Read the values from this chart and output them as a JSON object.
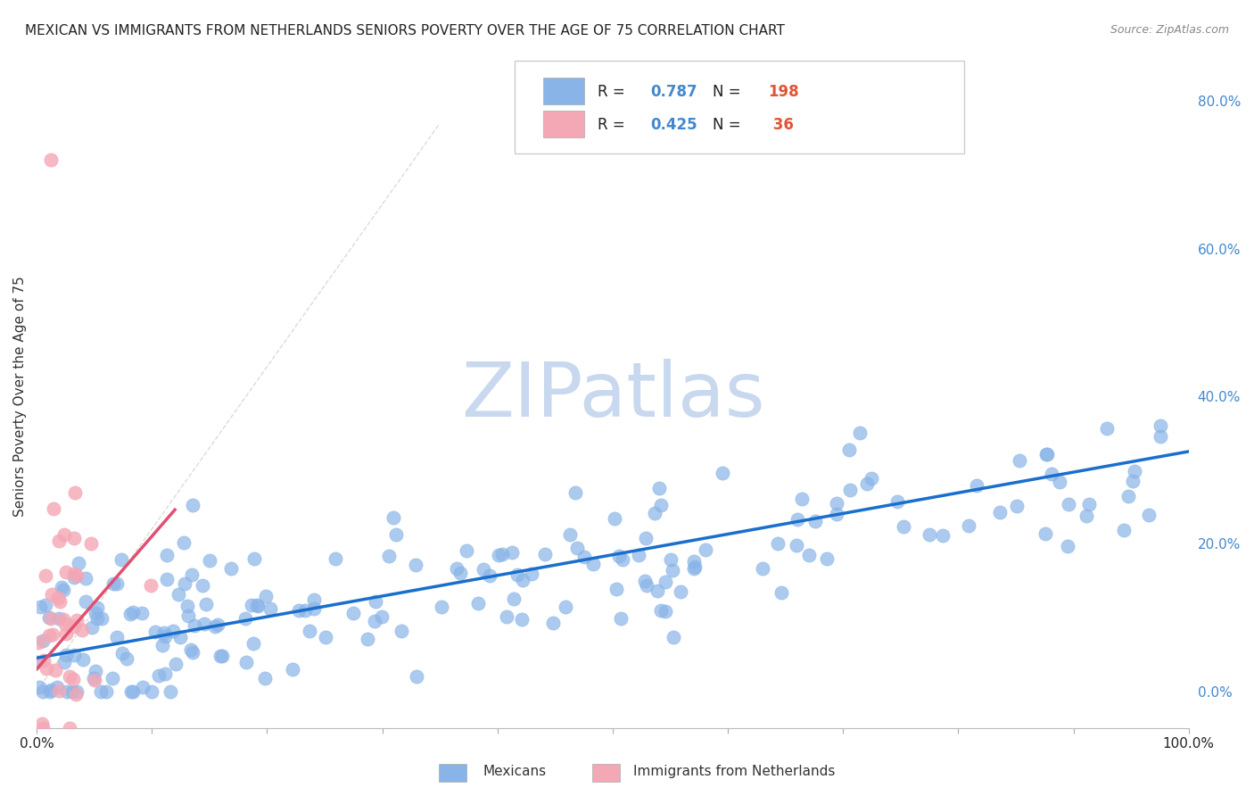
{
  "title": "MEXICAN VS IMMIGRANTS FROM NETHERLANDS SENIORS POVERTY OVER THE AGE OF 75 CORRELATION CHART",
  "source": "Source: ZipAtlas.com",
  "ylabel": "Seniors Poverty Over the Age of 75",
  "xlim": [
    0,
    1.0
  ],
  "ylim": [
    -0.05,
    0.85
  ],
  "blue_R": 0.787,
  "blue_N": 198,
  "pink_R": 0.425,
  "pink_N": 36,
  "blue_color": "#89b4e8",
  "pink_color": "#f4a7b5",
  "blue_line_color": "#1a6fcc",
  "pink_line_color": "#e05070",
  "watermark": "ZIPatlas",
  "watermark_color": "#c8d8ee",
  "background_color": "#ffffff",
  "right_ytick_color": "#4488cc",
  "grid_color": "#e0e0e0",
  "title_fontsize": 11,
  "blue_slope": 0.28,
  "blue_intercept": 0.045,
  "pink_slope": 1.8,
  "pink_intercept": 0.03
}
